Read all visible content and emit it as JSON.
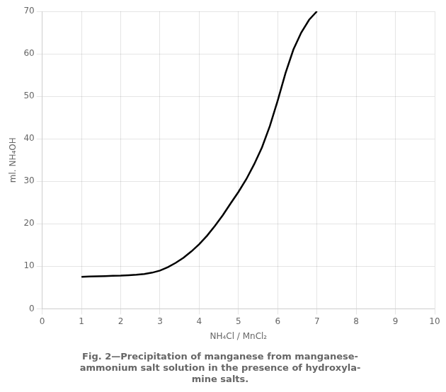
{
  "chart_data": {
    "type": "line",
    "title": [
      "Fig. 2—Precipitation of manganese from manganese-",
      "ammonium salt solution in the presence of hydroxyla-",
      "mine salts."
    ],
    "xlabel": "NH₄Cl / MnCl₂",
    "ylabel": "ml. NH₄OH",
    "x": [
      1.0,
      1.2,
      1.4,
      1.6,
      1.8,
      2.0,
      2.2,
      2.4,
      2.6,
      2.8,
      3.0,
      3.2,
      3.4,
      3.6,
      3.8,
      4.0,
      4.2,
      4.4,
      4.6,
      4.8,
      5.0,
      5.2,
      5.4,
      5.6,
      5.8,
      6.0,
      6.2,
      6.4,
      6.6,
      6.8,
      7.0
    ],
    "values": [
      7.5,
      7.6,
      7.65,
      7.7,
      7.75,
      7.8,
      7.9,
      8.0,
      8.2,
      8.5,
      9.0,
      9.8,
      10.8,
      12.0,
      13.5,
      15.2,
      17.2,
      19.5,
      22.0,
      24.8,
      27.5,
      30.5,
      34.0,
      38.0,
      43.0,
      49.0,
      55.5,
      61.0,
      65.0,
      68.0,
      70.0
    ],
    "color": "#000000",
    "xlim": [
      0,
      10
    ],
    "ylim": [
      0,
      70
    ],
    "xticks": [
      0,
      1,
      2,
      3,
      4,
      5,
      6,
      7,
      8,
      9,
      10
    ],
    "yticks": [
      0,
      10,
      20,
      30,
      40,
      50,
      60,
      70
    ],
    "grid": true
  }
}
